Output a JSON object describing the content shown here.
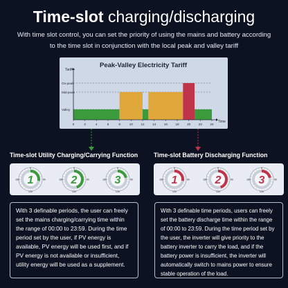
{
  "header": {
    "title_bold": "Time-slot",
    "title_rest": " charging/discharging",
    "subtitle": "With time slot control, you can set the priority of using the mains and battery according to the time slot in conjunction with the local peak and valley tariff"
  },
  "chart_data": {
    "type": "bar",
    "title": "Peak-Valley Electricity Tariff",
    "ylabel": "Tariff",
    "xlabel": "Time",
    "xlim": [
      0,
      24
    ],
    "x_ticks": [
      "0",
      "2",
      "4",
      "6",
      "8",
      "10",
      "12",
      "14",
      "16",
      "18",
      "20",
      "22",
      "24"
    ],
    "y_levels": [
      "Valley",
      "Mid-peak",
      "On-peak"
    ],
    "segments": [
      {
        "start": 0,
        "end": 8,
        "level": "Valley",
        "color": "#3b9a3c"
      },
      {
        "start": 8,
        "end": 12,
        "level": "Mid-peak",
        "color": "#e0a83a"
      },
      {
        "start": 12,
        "end": 13,
        "level": "Valley",
        "color": "#3b9a3c"
      },
      {
        "start": 13,
        "end": 19,
        "level": "Mid-peak",
        "color": "#e0a83a"
      },
      {
        "start": 19,
        "end": 21,
        "level": "On-peak",
        "color": "#c0344a"
      },
      {
        "start": 21,
        "end": 24,
        "level": "Valley",
        "color": "#3b9a3c"
      }
    ],
    "grid": false
  },
  "left_section": {
    "title": "Time-slot Utility Charging/Carrying Function",
    "accent": "#3b9a3c",
    "dials": [
      {
        "number": "1",
        "fill": 0.28
      },
      {
        "number": "2",
        "fill": 0.45
      },
      {
        "number": "3",
        "fill": 0.22
      }
    ],
    "description": "With 3 definable periods, the user can freely set the mains charging/carrying time within the range of 00:00 to 23:59. During the time period set by the user, if PV energy is available, PV energy will be used first, and if PV energy is not available or insufficient, utility energy will be used as a supplement."
  },
  "right_section": {
    "title": "Time-slot Battery Discharging Function",
    "accent": "#c0344a",
    "dials": [
      {
        "number": "1",
        "fill": 0.28
      },
      {
        "number": "2",
        "fill": 0.45
      },
      {
        "number": "3",
        "fill": 0.22
      }
    ],
    "description": "With 3 definable time periods, users can freely set the battery discharge time within the range of 00:00 to 23:59. During the time period set by the user, the inverter will give priority to the battery inverter to carry the load, and if the battery power is insufficient, the inverter will automatically switch to mains power to ensure stable operation of the load."
  },
  "dial_labels": {
    "top": "0",
    "right": "6h",
    "bottom": "12h",
    "left": "18h"
  }
}
